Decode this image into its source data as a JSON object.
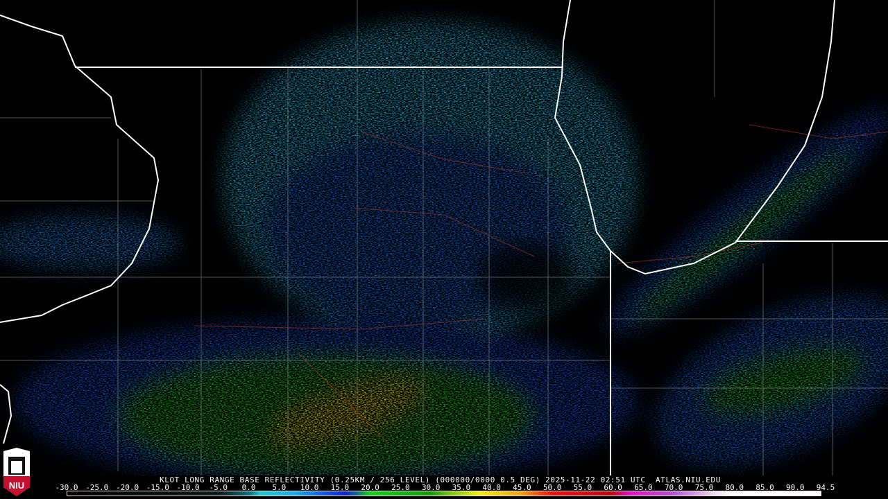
{
  "title": "KLOT LONG RANGE BASE REFLECTIVITY (0.25KM / 256 LEVEL) (000000/0000 0.5 DEG) 2025-11-22 02:51 UTC  ATLAS.NIU.EDU",
  "logo": {
    "text": "NIU",
    "color": "#c8102e"
  },
  "legend": {
    "labels": [
      "-30.0",
      "-25.0",
      "-20.0",
      "-15.0",
      "-10.0",
      "-5.0",
      "0.0",
      "5.0",
      "10.0",
      "15.0",
      "20.0",
      "25.0",
      "30.0",
      "35.0",
      "40.0",
      "45.0",
      "50.0",
      "55.0",
      "60.0",
      "65.0",
      "70.0",
      "75.0",
      "80.0",
      "85.0",
      "90.0",
      "94.5"
    ],
    "stops": [
      {
        "value": -30,
        "color": "#000000"
      },
      {
        "value": -5,
        "color": "#0a1a1a"
      },
      {
        "value": 0,
        "color": "#0a6f78"
      },
      {
        "value": 2,
        "color": "#18c8d0"
      },
      {
        "value": 7,
        "color": "#1ab0e8"
      },
      {
        "value": 12,
        "color": "#1060e8"
      },
      {
        "value": 16,
        "color": "#1020d8"
      },
      {
        "value": 18,
        "color": "#107080"
      },
      {
        "value": 20,
        "color": "#10d020"
      },
      {
        "value": 30,
        "color": "#109810"
      },
      {
        "value": 33,
        "color": "#70c010"
      },
      {
        "value": 38,
        "color": "#f0f010"
      },
      {
        "value": 45,
        "color": "#f0a010"
      },
      {
        "value": 50,
        "color": "#f01010"
      },
      {
        "value": 60,
        "color": "#c00010"
      },
      {
        "value": 63,
        "color": "#e010c0"
      },
      {
        "value": 70,
        "color": "#b050d0"
      },
      {
        "value": 77,
        "color": "#e8e0f0"
      },
      {
        "value": 80,
        "color": "#ffffff"
      },
      {
        "value": 94.5,
        "color": "#ffffff"
      }
    ]
  }
}
